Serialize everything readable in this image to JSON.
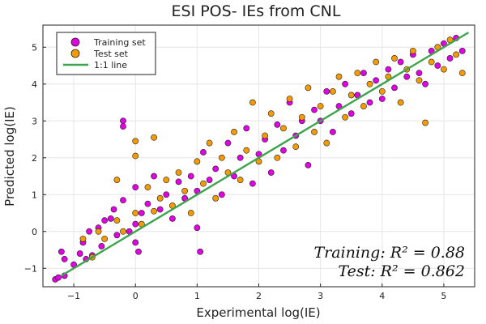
{
  "chart_data": {
    "type": "scatter",
    "title": "ESI POS- IEs from CNL",
    "xlabel": "Experimental log(IE)",
    "ylabel": "Predicted log(IE)",
    "xlim": [
      -1.5,
      5.5
    ],
    "ylim": [
      -1.5,
      5.6
    ],
    "xticks": [
      -1,
      0,
      1,
      2,
      3,
      4,
      5
    ],
    "yticks": [
      -1,
      0,
      1,
      2,
      3,
      4,
      5
    ],
    "grid": true,
    "legend_position": "top-left",
    "series": [
      {
        "name": "Training set",
        "color": "#e100e1",
        "marker": "circle",
        "points": [
          [
            -1.3,
            -1.3
          ],
          [
            -1.25,
            -1.25
          ],
          [
            -1.15,
            -1.2
          ],
          [
            -1.2,
            -0.55
          ],
          [
            -1.15,
            -0.75
          ],
          [
            -1.0,
            -0.9
          ],
          [
            -0.9,
            -0.6
          ],
          [
            -0.85,
            -0.3
          ],
          [
            -0.8,
            -0.75
          ],
          [
            -0.75,
            0.0
          ],
          [
            -0.7,
            -0.65
          ],
          [
            -0.6,
            0.1
          ],
          [
            -0.55,
            -0.4
          ],
          [
            -0.5,
            0.3
          ],
          [
            -0.4,
            0.35
          ],
          [
            -0.35,
            0.6
          ],
          [
            -0.3,
            -0.1
          ],
          [
            -0.2,
            0.85
          ],
          [
            -0.2,
            2.85
          ],
          [
            -0.2,
            3.0
          ],
          [
            -0.1,
            0.0
          ],
          [
            0.0,
            -0.3
          ],
          [
            0.0,
            0.2
          ],
          [
            0.0,
            1.2
          ],
          [
            0.05,
            -0.55
          ],
          [
            0.1,
            0.5
          ],
          [
            0.2,
            0.75
          ],
          [
            0.3,
            1.5
          ],
          [
            0.4,
            0.6
          ],
          [
            0.5,
            1.0
          ],
          [
            0.6,
            0.35
          ],
          [
            0.7,
            1.35
          ],
          [
            0.8,
            0.9
          ],
          [
            0.9,
            1.5
          ],
          [
            1.0,
            1.1
          ],
          [
            1.0,
            0.1
          ],
          [
            1.05,
            -0.55
          ],
          [
            1.1,
            2.15
          ],
          [
            1.2,
            1.4
          ],
          [
            1.3,
            1.7
          ],
          [
            1.4,
            1.0
          ],
          [
            1.5,
            2.4
          ],
          [
            1.6,
            1.5
          ],
          [
            1.7,
            2.0
          ],
          [
            1.8,
            2.8
          ],
          [
            1.9,
            1.3
          ],
          [
            2.0,
            2.1
          ],
          [
            2.1,
            2.5
          ],
          [
            2.2,
            1.6
          ],
          [
            2.3,
            2.9
          ],
          [
            2.4,
            2.2
          ],
          [
            2.5,
            3.5
          ],
          [
            2.6,
            2.6
          ],
          [
            2.7,
            3.0
          ],
          [
            2.8,
            1.8
          ],
          [
            2.9,
            3.3
          ],
          [
            3.0,
            3.0
          ],
          [
            3.1,
            3.8
          ],
          [
            3.2,
            2.7
          ],
          [
            3.3,
            3.4
          ],
          [
            3.4,
            4.0
          ],
          [
            3.5,
            3.2
          ],
          [
            3.6,
            3.7
          ],
          [
            3.7,
            4.3
          ],
          [
            3.8,
            3.5
          ],
          [
            3.9,
            4.1
          ],
          [
            4.0,
            3.6
          ],
          [
            4.1,
            4.4
          ],
          [
            4.2,
            3.9
          ],
          [
            4.3,
            4.6
          ],
          [
            4.4,
            4.2
          ],
          [
            4.5,
            4.8
          ],
          [
            4.6,
            4.3
          ],
          [
            4.7,
            4.0
          ],
          [
            4.8,
            4.9
          ],
          [
            4.9,
            4.5
          ],
          [
            5.0,
            5.1
          ],
          [
            5.1,
            4.7
          ],
          [
            5.2,
            5.25
          ],
          [
            5.3,
            4.9
          ]
        ]
      },
      {
        "name": "Test set",
        "color": "#f59a00",
        "marker": "circle",
        "points": [
          [
            -0.85,
            -0.2
          ],
          [
            -0.7,
            -0.7
          ],
          [
            -0.6,
            0.0
          ],
          [
            -0.5,
            -0.2
          ],
          [
            -0.3,
            1.4
          ],
          [
            -0.3,
            0.3
          ],
          [
            -0.2,
            0.0
          ],
          [
            0.0,
            2.45
          ],
          [
            0.0,
            2.05
          ],
          [
            0.0,
            0.5
          ],
          [
            0.1,
            0.2
          ],
          [
            0.2,
            1.2
          ],
          [
            0.3,
            0.55
          ],
          [
            0.3,
            2.55
          ],
          [
            0.4,
            0.9
          ],
          [
            0.5,
            1.4
          ],
          [
            0.6,
            0.7
          ],
          [
            0.7,
            1.6
          ],
          [
            0.8,
            1.1
          ],
          [
            0.9,
            0.5
          ],
          [
            1.0,
            1.9
          ],
          [
            1.1,
            1.3
          ],
          [
            1.2,
            2.4
          ],
          [
            1.3,
            0.9
          ],
          [
            1.4,
            2.0
          ],
          [
            1.5,
            1.6
          ],
          [
            1.6,
            2.7
          ],
          [
            1.7,
            1.4
          ],
          [
            1.8,
            2.2
          ],
          [
            1.9,
            3.5
          ],
          [
            2.0,
            1.9
          ],
          [
            2.1,
            2.6
          ],
          [
            2.2,
            3.2
          ],
          [
            2.3,
            2.0
          ],
          [
            2.4,
            2.8
          ],
          [
            2.5,
            3.6
          ],
          [
            2.6,
            2.3
          ],
          [
            2.7,
            3.1
          ],
          [
            2.8,
            3.9
          ],
          [
            2.9,
            2.7
          ],
          [
            3.0,
            3.4
          ],
          [
            3.1,
            2.4
          ],
          [
            3.2,
            3.8
          ],
          [
            3.3,
            4.2
          ],
          [
            3.4,
            3.1
          ],
          [
            3.5,
            3.7
          ],
          [
            3.6,
            4.3
          ],
          [
            3.7,
            3.4
          ],
          [
            3.8,
            4.0
          ],
          [
            3.9,
            4.6
          ],
          [
            4.0,
            3.8
          ],
          [
            4.1,
            4.2
          ],
          [
            4.2,
            4.7
          ],
          [
            4.3,
            3.5
          ],
          [
            4.4,
            4.4
          ],
          [
            4.5,
            4.9
          ],
          [
            4.6,
            4.1
          ],
          [
            4.7,
            2.95
          ],
          [
            4.8,
            4.6
          ],
          [
            4.9,
            5.0
          ],
          [
            5.0,
            4.4
          ],
          [
            5.1,
            5.2
          ],
          [
            5.2,
            4.8
          ],
          [
            5.3,
            4.3
          ]
        ]
      },
      {
        "name": "1:1 line",
        "color": "#3da44d",
        "type": "line",
        "points": [
          [
            -1.2,
            -1.2
          ],
          [
            5.4,
            5.4
          ]
        ]
      }
    ],
    "annotations": [
      "Training: R² = 0.88",
      "Test: R² = 0.862"
    ]
  }
}
